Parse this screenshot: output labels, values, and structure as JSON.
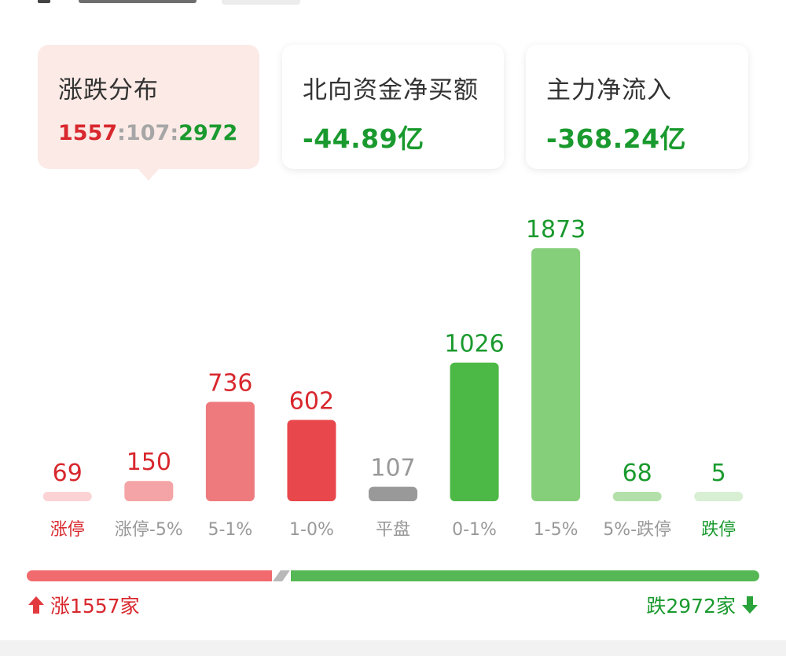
{
  "cards": [
    {
      "title": "涨跌分布",
      "ratio": {
        "up": "1557",
        "sep1": ":",
        "flat": "107",
        "sep2": ":",
        "down": "2972"
      }
    },
    {
      "title": "北向资金净买额",
      "value": "-44.89亿"
    },
    {
      "title": "主力净流入",
      "value": "-368.24亿"
    }
  ],
  "colors": {
    "up": "#d8272d",
    "flat": "#a6a6a6",
    "down": "#1a9a2e",
    "active_card_bg": "#fbeae6"
  },
  "chart_data": {
    "type": "bar",
    "categories": [
      "涨停",
      "涨停-5%",
      "5-1%",
      "1-0%",
      "平盘",
      "0-1%",
      "1-5%",
      "5%-跌停",
      "跌停"
    ],
    "values": [
      69,
      150,
      736,
      602,
      107,
      1026,
      1873,
      68,
      5
    ],
    "bar_colors": [
      "#fbd3d4",
      "#f4a4a6",
      "#ef7a7d",
      "#e8474b",
      "#999999",
      "#4cb845",
      "#86cf7a",
      "#b3e0aa",
      "#d8efd3"
    ],
    "value_colors": [
      "#d8272d",
      "#d8272d",
      "#d8272d",
      "#d8272d",
      "#999999",
      "#1a9a2e",
      "#1a9a2e",
      "#1a9a2e",
      "#1a9a2e"
    ],
    "category_colors": [
      "#d8272d",
      "#999999",
      "#999999",
      "#999999",
      "#999999",
      "#999999",
      "#999999",
      "#999999",
      "#1a9a2e"
    ],
    "ylim": [
      0,
      1873
    ],
    "grid": false
  },
  "summary": {
    "up_count": 1557,
    "flat_count": 107,
    "down_count": 2972,
    "up_label": "涨1557家",
    "down_label": "跌2972家",
    "up_icon": "arrow-up-icon",
    "down_icon": "arrow-down-icon"
  }
}
